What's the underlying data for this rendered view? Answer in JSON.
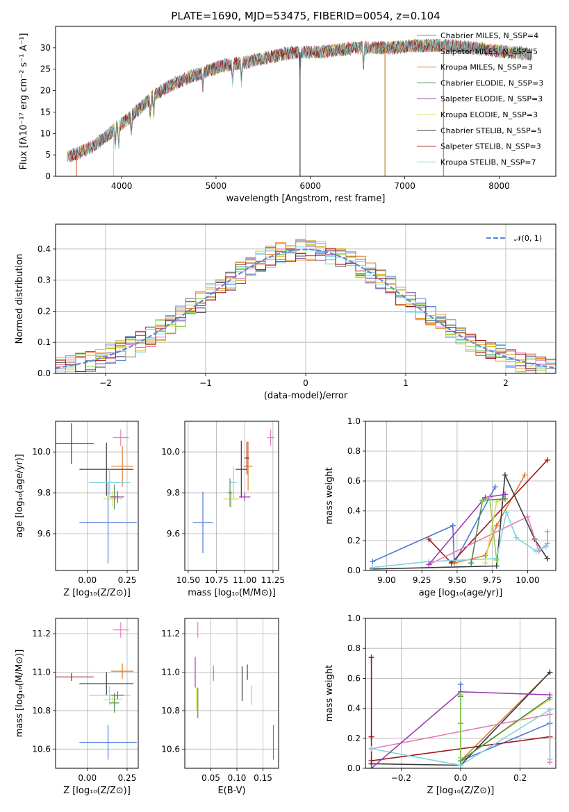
{
  "title": "PLATE=1690, MJD=53475, FIBERID=0054, z=0.104",
  "colors": [
    "#e17c27",
    "#4b4b4b",
    "#e57ab8",
    "#f2a23b",
    "#5a8bd8",
    "#e3a93c",
    "#7d4fa3",
    "#d3b000",
    "#8bd35b"
  ],
  "chart_data": [
    {
      "id": "spectrum",
      "type": "line",
      "xlabel": "wavelength [Angstrom, rest frame]",
      "ylabel": "Flux [fλ10⁻¹⁷ erg cm⁻² s⁻¹ A⁻¹]",
      "xlim": [
        3300,
        8600
      ],
      "ylim": [
        0,
        35
      ],
      "xticks": [
        "4000",
        "5000",
        "6000",
        "7000",
        "8000"
      ],
      "yticks": [
        "0",
        "5",
        "10",
        "15",
        "20",
        "25",
        "30"
      ],
      "grid": false,
      "legend_position": "top-right",
      "continuum_x": [
        3420,
        3550,
        3700,
        3850,
        3950,
        4050,
        4200,
        4350,
        4500,
        4700,
        4900,
        5100,
        5300,
        5500,
        5700,
        5900,
        6100,
        6300,
        6500,
        6700,
        6900,
        7100,
        7300,
        7500,
        7700,
        7900,
        8100,
        8350
      ],
      "continuum_y": [
        4.5,
        5.5,
        7,
        9.5,
        11.5,
        13,
        16,
        19,
        21,
        23,
        24.5,
        26,
        26.5,
        27.5,
        28.5,
        29,
        29,
        29.5,
        30,
        30,
        30,
        30.5,
        30.5,
        30.5,
        30,
        29.5,
        29,
        28.5
      ],
      "series": [
        {
          "name": "Chabrier MILES, N_SSP=4",
          "color": "#8a8a8a"
        },
        {
          "name": "Salpeter MILES, N_SSP=5",
          "color": "#e55b4b"
        },
        {
          "name": "Kroupa MILES, N_SSP=3",
          "color": "#b8862f"
        },
        {
          "name": "Chabrier ELODIE, N_SSP=3",
          "color": "#4f8a4f"
        },
        {
          "name": "Salpeter ELODIE, N_SSP=3",
          "color": "#9b3fb0"
        },
        {
          "name": "Kroupa ELODIE, N_SSP=3",
          "color": "#dcdc5a"
        },
        {
          "name": "Chabrier STELIB, N_SSP=5",
          "color": "#3a3a3a"
        },
        {
          "name": "Salpeter STELIB, N_SSP=3",
          "color": "#a01818"
        },
        {
          "name": "Kroupa STELIB, N_SSP=7",
          "color": "#7fd4e0"
        }
      ]
    },
    {
      "id": "residuals",
      "type": "bar",
      "xlabel": "(data-model)/error",
      "ylabel": "Normed distribution",
      "xlim": [
        -2.5,
        2.5
      ],
      "ylim": [
        0,
        0.48
      ],
      "xticks": [
        "−2",
        "−1",
        "0",
        "1",
        "2"
      ],
      "yticks": [
        "0.0",
        "0.1",
        "0.2",
        "0.3",
        "0.4"
      ],
      "grid": true,
      "legend_position": "top-right",
      "reference_label": "𝒩(0, 1)",
      "bin_width": 0.1
    },
    {
      "id": "age-vs-Z",
      "type": "scatter",
      "xlabel": "Z [log₁₀(Z/Z⊙)]",
      "ylabel": "age  [log₁₀(age/yr)]",
      "xlim": [
        -0.2,
        0.32
      ],
      "ylim": [
        9.42,
        10.15
      ],
      "xticks": [
        "0.00",
        "0.25"
      ],
      "yticks": [
        "9.6",
        "9.8",
        "10.0"
      ],
      "grid": true,
      "points": [
        {
          "color": "#4a78d8",
          "x": 0.13,
          "xerr": 0.18,
          "y": 9.655,
          "yerr": 0.2
        },
        {
          "color": "#e17c27",
          "x": 0.22,
          "xerr": 0.07,
          "y": 9.93,
          "yerr": 0.1
        },
        {
          "color": "#a01818",
          "x": -0.1,
          "xerr": 0.14,
          "y": 10.04,
          "yerr": 0.1
        },
        {
          "color": "#3a3a3a",
          "x": 0.12,
          "xerr": 0.17,
          "y": 9.915,
          "yerr": 0.13
        },
        {
          "color": "#e57ab8",
          "x": 0.21,
          "xerr": 0.05,
          "y": 10.07,
          "yerr": 0.04
        },
        {
          "color": "#7fd4e0",
          "x": 0.14,
          "xerr": 0.13,
          "y": 9.85,
          "yerr": 0.06
        },
        {
          "color": "#dcdc5a",
          "x": 0.16,
          "xerr": 0.06,
          "y": 9.77,
          "yerr": 0.04
        },
        {
          "color": "#4f8a4f",
          "x": 0.17,
          "xerr": 0.03,
          "y": 9.78,
          "yerr": 0.06
        },
        {
          "color": "#9b3fb0",
          "x": 0.19,
          "xerr": 0.04,
          "y": 9.78,
          "yerr": 0.03
        }
      ]
    },
    {
      "id": "age-vs-mass",
      "type": "scatter",
      "xlabel": "mass [log₁₀(M/M⊙)]",
      "ylabel": "",
      "xlim": [
        10.47,
        11.3
      ],
      "ylim": [
        9.42,
        10.15
      ],
      "xticks": [
        "10.50",
        "10.75",
        "11.00",
        "11.25"
      ],
      "yticks": [
        "9.6",
        "9.8",
        "10.0"
      ],
      "grid": true,
      "points": [
        {
          "color": "#4a78d8",
          "x": 10.63,
          "xerr": 0.09,
          "y": 9.655,
          "yerr": 0.15
        },
        {
          "color": "#e17c27",
          "x": 11.03,
          "xerr": 0.04,
          "y": 9.93,
          "yerr": 0.12
        },
        {
          "color": "#a01818",
          "x": 11.02,
          "xerr": 0.02,
          "y": 9.97,
          "yerr": 0.08
        },
        {
          "color": "#3a3a3a",
          "x": 10.97,
          "xerr": 0.05,
          "y": 9.915,
          "yerr": 0.14
        },
        {
          "color": "#e57ab8",
          "x": 11.23,
          "xerr": 0.03,
          "y": 10.07,
          "yerr": 0.04
        },
        {
          "color": "#7fd4e0",
          "x": 10.9,
          "xerr": 0.03,
          "y": 9.85,
          "yerr": 0.08
        },
        {
          "color": "#dcdc5a",
          "x": 10.88,
          "xerr": 0.07,
          "y": 9.77,
          "yerr": 0.04
        },
        {
          "color": "#4f8a4f",
          "x": 10.87,
          "xerr": 0.02,
          "y": 9.8,
          "yerr": 0.07
        },
        {
          "color": "#9b3fb0",
          "x": 11.0,
          "xerr": 0.05,
          "y": 9.78,
          "yerr": 0.02
        }
      ]
    },
    {
      "id": "mass-weight-vs-age",
      "type": "line",
      "xlabel": "age  [log₁₀(age/yr)]",
      "ylabel": "mass weight",
      "xlim": [
        8.85,
        10.2
      ],
      "ylim": [
        0,
        1
      ],
      "xticks": [
        "9.00",
        "9.25",
        "9.50",
        "9.75",
        "10.00"
      ],
      "yticks": [
        "0.0",
        "0.2",
        "0.4",
        "0.6",
        "0.8",
        "1.0"
      ],
      "grid": true,
      "series": [
        {
          "color": "#4a78d8",
          "x": [
            8.9,
            9.47,
            9.48,
            9.77
          ],
          "y": [
            0.06,
            0.3,
            0.05,
            0.56
          ]
        },
        {
          "color": "#e17c27",
          "x": [
            9.48,
            9.7,
            9.78,
            9.98
          ],
          "y": [
            0.05,
            0.1,
            0.3,
            0.64
          ]
        },
        {
          "color": "#a01818",
          "x": [
            9.3,
            9.46,
            10.14
          ],
          "y": [
            0.21,
            0.05,
            0.74
          ]
        },
        {
          "color": "#3a3a3a",
          "x": [
            8.9,
            9.78,
            9.84,
            10.05,
            10.14
          ],
          "y": [
            0.01,
            0.03,
            0.64,
            0.21,
            0.08
          ]
        },
        {
          "color": "#e57ab8",
          "x": [
            9.3,
            10.0,
            10.08,
            10.14,
            10.14
          ],
          "y": [
            0.04,
            0.36,
            0.13,
            0.18,
            0.26
          ]
        },
        {
          "color": "#7fd4e0",
          "x": [
            8.9,
            9.3,
            9.78,
            9.85,
            9.92,
            10.06,
            10.13
          ],
          "y": [
            0.02,
            0.06,
            0.08,
            0.39,
            0.22,
            0.13,
            0.16
          ]
        },
        {
          "color": "#dcdc5a",
          "x": [
            9.7,
            9.78,
            9.84
          ],
          "y": [
            0.05,
            0.46,
            0.48
          ]
        },
        {
          "color": "#4f8a4f",
          "x": [
            9.6,
            9.68,
            9.84
          ],
          "y": [
            0.05,
            0.47,
            0.48
          ]
        },
        {
          "color": "#9b3fb0",
          "x": [
            9.3,
            9.7,
            9.84
          ],
          "y": [
            0.04,
            0.49,
            0.51
          ]
        },
        {
          "color": "#8bd35b",
          "x": [
            9.68,
            9.73,
            9.78
          ],
          "y": [
            0.46,
            0.49,
            0.07
          ]
        }
      ]
    },
    {
      "id": "mass-vs-Z",
      "type": "scatter",
      "xlabel": "Z [log₁₀(Z/Z⊙)]",
      "ylabel": "mass [log₁₀(M/M⊙)]",
      "xlim": [
        -0.2,
        0.32
      ],
      "ylim": [
        10.5,
        11.28
      ],
      "xticks": [
        "0.00",
        "0.25"
      ],
      "yticks": [
        "10.6",
        "10.8",
        "11.0",
        "11.2"
      ],
      "grid": true,
      "points": [
        {
          "color": "#4a78d8",
          "x": 0.13,
          "xerr": 0.18,
          "y": 10.635,
          "yerr": 0.09
        },
        {
          "color": "#e17c27",
          "x": 0.22,
          "xerr": 0.07,
          "y": 11.005,
          "yerr": 0.04
        },
        {
          "color": "#a01818",
          "x": -0.1,
          "xerr": 0.14,
          "y": 10.975,
          "yerr": 0.02
        },
        {
          "color": "#3a3a3a",
          "x": 0.12,
          "xerr": 0.17,
          "y": 10.94,
          "yerr": 0.06
        },
        {
          "color": "#e57ab8",
          "x": 0.21,
          "xerr": 0.05,
          "y": 11.22,
          "yerr": 0.04
        },
        {
          "color": "#7fd4e0",
          "x": 0.14,
          "xerr": 0.13,
          "y": 10.88,
          "yerr": 0.05
        },
        {
          "color": "#dcdc5a",
          "x": 0.16,
          "xerr": 0.06,
          "y": 10.86,
          "yerr": 0.02
        },
        {
          "color": "#4f8a4f",
          "x": 0.17,
          "xerr": 0.03,
          "y": 10.84,
          "yerr": 0.05
        },
        {
          "color": "#9b3fb0",
          "x": 0.19,
          "xerr": 0.04,
          "y": 10.88,
          "yerr": 0.02
        }
      ]
    },
    {
      "id": "mass-vs-ebv",
      "type": "scatter",
      "xlabel": "E(B-V)",
      "ylabel": "",
      "xlim": [
        0.0,
        0.18
      ],
      "ylim": [
        10.5,
        11.28
      ],
      "xticks": [
        "0.05",
        "0.10",
        "0.15"
      ],
      "yticks": [
        "10.6",
        "10.8",
        "11.0",
        "11.2"
      ],
      "grid": true,
      "points": [
        {
          "color": "#4a78d8",
          "x": 0.17,
          "xerr": 0,
          "y": 10.635,
          "yerr": 0.09
        },
        {
          "color": "#e17c27",
          "x": 0.055,
          "xerr": 0,
          "y": 10.995,
          "yerr": 0.04
        },
        {
          "color": "#a01818",
          "x": 0.12,
          "xerr": 0,
          "y": 11.0,
          "yerr": 0.04
        },
        {
          "color": "#3a3a3a",
          "x": 0.11,
          "xerr": 0,
          "y": 10.94,
          "yerr": 0.09
        },
        {
          "color": "#e57ab8",
          "x": 0.025,
          "xerr": 0,
          "y": 11.22,
          "yerr": 0.04
        },
        {
          "color": "#7fd4e0",
          "x": 0.128,
          "xerr": 0,
          "y": 10.88,
          "yerr": 0.05
        },
        {
          "color": "#dcdc5a",
          "x": 0.022,
          "xerr": 0,
          "y": 10.86,
          "yerr": 0.06
        },
        {
          "color": "#4f8a4f",
          "x": 0.025,
          "xerr": 0,
          "y": 10.84,
          "yerr": 0.08
        },
        {
          "color": "#9b3fb0",
          "x": 0.02,
          "xerr": 0,
          "y": 11.0,
          "yerr": 0.08
        }
      ]
    },
    {
      "id": "mass-weight-vs-Z",
      "type": "line",
      "xlabel": "Z [log₁₀(Z/Z⊙)]",
      "ylabel": "mass weight",
      "xlim": [
        -0.32,
        0.32
      ],
      "ylim": [
        0,
        1
      ],
      "xticks": [
        "−0.2",
        "0.0",
        "0.2"
      ],
      "yticks": [
        "0.0",
        "0.2",
        "0.4",
        "0.6",
        "0.8",
        "1.0"
      ],
      "grid": true,
      "series": [
        {
          "color": "#4a78d8",
          "x": [
            0.0,
            0.0,
            0.3
          ],
          "y": [
            0.56,
            0.05,
            0.3
          ]
        },
        {
          "color": "#e17c27",
          "x": [
            0.0,
            0.0,
            0.3
          ],
          "y": [
            0.3,
            0.05,
            0.64
          ]
        },
        {
          "color": "#a01818",
          "x": [
            -0.3,
            -0.3,
            -0.3,
            0.3
          ],
          "y": [
            0.74,
            0.21,
            0.05,
            0.21
          ]
        },
        {
          "color": "#3a3a3a",
          "x": [
            -0.3,
            0.0,
            0.3
          ],
          "y": [
            0.03,
            0.02,
            0.64
          ]
        },
        {
          "color": "#e57ab8",
          "x": [
            -0.3,
            0.3,
            0.3
          ],
          "y": [
            0.13,
            0.36,
            0.04
          ]
        },
        {
          "color": "#7fd4e0",
          "x": [
            -0.3,
            0.0,
            0.3,
            0.3
          ],
          "y": [
            0.13,
            0.02,
            0.39,
            0.06
          ]
        },
        {
          "color": "#dcdc5a",
          "x": [
            0.0,
            0.0,
            0.3
          ],
          "y": [
            0.48,
            0.05,
            0.46
          ]
        },
        {
          "color": "#4f8a4f",
          "x": [
            0.0,
            0.0,
            0.3
          ],
          "y": [
            0.48,
            0.05,
            0.47
          ]
        },
        {
          "color": "#9b3fb0",
          "x": [
            -0.3,
            0.0,
            0.3
          ],
          "y": [
            0.0,
            0.51,
            0.49
          ]
        },
        {
          "color": "#8bd35b",
          "x": [
            0.0,
            0.0
          ],
          "y": [
            0.49,
            0.07
          ]
        }
      ]
    }
  ]
}
